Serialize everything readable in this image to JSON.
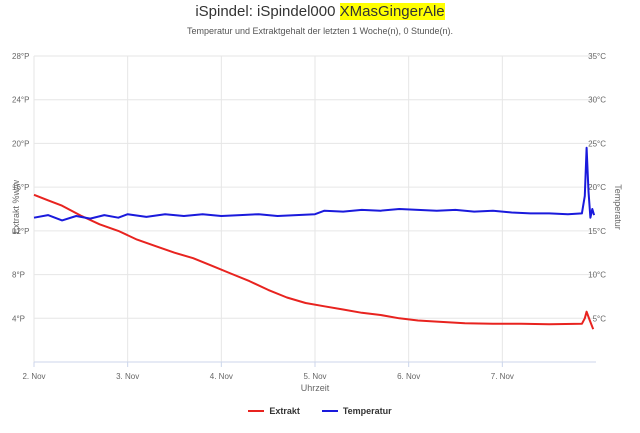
{
  "title": {
    "prefix": "iSpindel: iSpindel000 ",
    "highlight": "XMasGingerAle"
  },
  "subtitle": "Temperatur und Extraktgehalt der letzten 1 Woche(n), 0 Stunde(n).",
  "colors": {
    "extrakt": "#e8231f",
    "temperatur": "#1a1adc",
    "grid": "#e6e6e6",
    "highlight": "#ffff00"
  },
  "chart_data": {
    "type": "line",
    "xlabel": "Uhrzeit",
    "ylabel_left": "Extrakt %w/w",
    "ylabel_right": "Temperatur",
    "x_unit": "days since 2. Nov",
    "xlim": [
      0,
      6.0
    ],
    "x_ticks": [
      {
        "x": 0,
        "label": "2. Nov"
      },
      {
        "x": 1,
        "label": "3. Nov"
      },
      {
        "x": 2,
        "label": "4. Nov"
      },
      {
        "x": 3,
        "label": "5. Nov"
      },
      {
        "x": 4,
        "label": "6. Nov"
      },
      {
        "x": 5,
        "label": "7. Nov"
      }
    ],
    "ylim_left": [
      0,
      28
    ],
    "y_ticks_left": [
      {
        "v": 4,
        "label": "4°P"
      },
      {
        "v": 8,
        "label": "8°P"
      },
      {
        "v": 12,
        "label": "12°P"
      },
      {
        "v": 16,
        "label": "16°P"
      },
      {
        "v": 20,
        "label": "20°P"
      },
      {
        "v": 24,
        "label": "24°P"
      },
      {
        "v": 28,
        "label": "28°P"
      }
    ],
    "ylim_right": [
      0,
      35
    ],
    "y_ticks_right": [
      {
        "v": 5,
        "label": "5°C"
      },
      {
        "v": 10,
        "label": "10°C"
      },
      {
        "v": 15,
        "label": "15°C"
      },
      {
        "v": 20,
        "label": "20°C"
      },
      {
        "v": 25,
        "label": "25°C"
      },
      {
        "v": 30,
        "label": "30°C"
      },
      {
        "v": 35,
        "label": "35°C"
      }
    ],
    "grid": true,
    "legend_position": "bottom-center",
    "series": [
      {
        "name": "Extrakt",
        "axis": "left",
        "points": [
          [
            0.0,
            15.3
          ],
          [
            0.15,
            14.8
          ],
          [
            0.3,
            14.3
          ],
          [
            0.5,
            13.4
          ],
          [
            0.7,
            12.6
          ],
          [
            0.9,
            12.0
          ],
          [
            1.1,
            11.2
          ],
          [
            1.3,
            10.6
          ],
          [
            1.5,
            10.0
          ],
          [
            1.7,
            9.5
          ],
          [
            1.9,
            8.8
          ],
          [
            2.1,
            8.1
          ],
          [
            2.3,
            7.4
          ],
          [
            2.5,
            6.6
          ],
          [
            2.7,
            5.9
          ],
          [
            2.9,
            5.4
          ],
          [
            3.1,
            5.1
          ],
          [
            3.3,
            4.8
          ],
          [
            3.5,
            4.5
          ],
          [
            3.7,
            4.3
          ],
          [
            3.9,
            4.0
          ],
          [
            4.1,
            3.8
          ],
          [
            4.3,
            3.7
          ],
          [
            4.6,
            3.55
          ],
          [
            4.9,
            3.5
          ],
          [
            5.2,
            3.5
          ],
          [
            5.5,
            3.45
          ],
          [
            5.85,
            3.5
          ],
          [
            5.88,
            4.0
          ],
          [
            5.9,
            4.6
          ],
          [
            5.93,
            3.9
          ],
          [
            5.97,
            3.0
          ]
        ]
      },
      {
        "name": "Temperatur",
        "axis": "right",
        "points": [
          [
            0.0,
            16.5
          ],
          [
            0.15,
            16.8
          ],
          [
            0.3,
            16.2
          ],
          [
            0.45,
            16.7
          ],
          [
            0.6,
            16.4
          ],
          [
            0.75,
            16.8
          ],
          [
            0.9,
            16.5
          ],
          [
            1.0,
            16.9
          ],
          [
            1.2,
            16.6
          ],
          [
            1.4,
            16.9
          ],
          [
            1.6,
            16.7
          ],
          [
            1.8,
            16.9
          ],
          [
            2.0,
            16.7
          ],
          [
            2.2,
            16.8
          ],
          [
            2.4,
            16.9
          ],
          [
            2.6,
            16.7
          ],
          [
            2.8,
            16.8
          ],
          [
            3.0,
            16.9
          ],
          [
            3.1,
            17.3
          ],
          [
            3.3,
            17.2
          ],
          [
            3.5,
            17.4
          ],
          [
            3.7,
            17.3
          ],
          [
            3.9,
            17.5
          ],
          [
            4.1,
            17.4
          ],
          [
            4.3,
            17.3
          ],
          [
            4.5,
            17.4
          ],
          [
            4.7,
            17.2
          ],
          [
            4.9,
            17.3
          ],
          [
            5.1,
            17.1
          ],
          [
            5.3,
            17.0
          ],
          [
            5.5,
            17.0
          ],
          [
            5.7,
            16.9
          ],
          [
            5.85,
            17.0
          ],
          [
            5.88,
            19.0
          ],
          [
            5.9,
            24.5
          ],
          [
            5.92,
            19.5
          ],
          [
            5.94,
            16.5
          ],
          [
            5.96,
            17.5
          ],
          [
            5.98,
            16.8
          ]
        ]
      }
    ]
  }
}
